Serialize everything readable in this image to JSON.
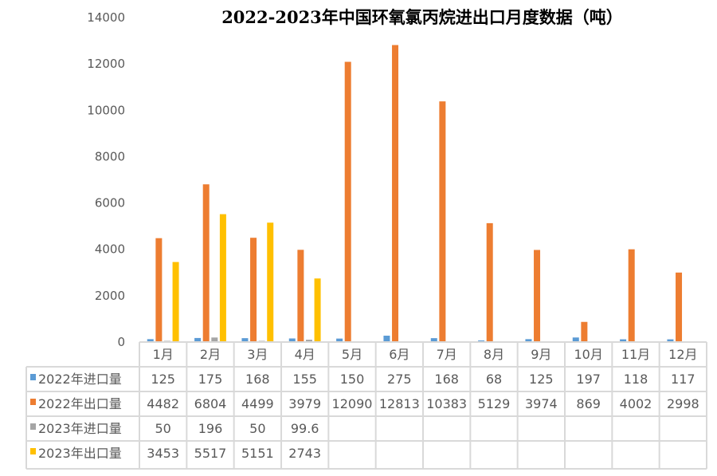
{
  "chart_data": {
    "type": "bar",
    "title": "2022-2023年中国环氧氯丙烷进出口月度数据（吨）",
    "categories": [
      "1月",
      "2月",
      "3月",
      "4月",
      "5月",
      "6月",
      "7月",
      "8月",
      "9月",
      "10月",
      "11月",
      "12月"
    ],
    "ylim": [
      0,
      14000
    ],
    "yticks": [
      "0",
      "2000",
      "4000",
      "6000",
      "8000",
      "10000",
      "12000",
      "14000"
    ],
    "xlabel": "",
    "ylabel": "",
    "grid": false,
    "legend": "data-table",
    "series": [
      {
        "name": "2022年进口量",
        "color": "#5B9BD5",
        "values": [
          125,
          175,
          168,
          155,
          150,
          275,
          168,
          68,
          125,
          197,
          118,
          117
        ],
        "labels": [
          "125",
          "175",
          "168",
          "155",
          "150",
          "275",
          "168",
          "68",
          "125",
          "197",
          "118",
          "117"
        ]
      },
      {
        "name": "2022年出口量",
        "color": "#ED7D31",
        "values": [
          4482,
          6804,
          4499,
          3979,
          12090,
          12813,
          10383,
          5129,
          3974,
          869,
          4002,
          2998
        ],
        "labels": [
          "4482",
          "6804",
          "4499",
          "3979",
          "12090",
          "12813",
          "10383",
          "5129",
          "3974",
          "869",
          "4002",
          "2998"
        ]
      },
      {
        "name": "2023年进口量",
        "color": "#A5A5A5",
        "values": [
          50,
          196,
          50,
          99.6,
          null,
          null,
          null,
          null,
          null,
          null,
          null,
          null
        ],
        "labels": [
          "50",
          "196",
          "50",
          "99.6",
          "",
          "",
          "",
          "",
          "",
          "",
          "",
          ""
        ]
      },
      {
        "name": "2023年出口量",
        "color": "#FFC000",
        "values": [
          3453,
          5517,
          5151,
          2743,
          null,
          null,
          null,
          null,
          null,
          null,
          null,
          null
        ],
        "labels": [
          "3453",
          "5517",
          "5151",
          "2743",
          "",
          "",
          "",
          "",
          "",
          "",
          "",
          ""
        ]
      }
    ]
  }
}
